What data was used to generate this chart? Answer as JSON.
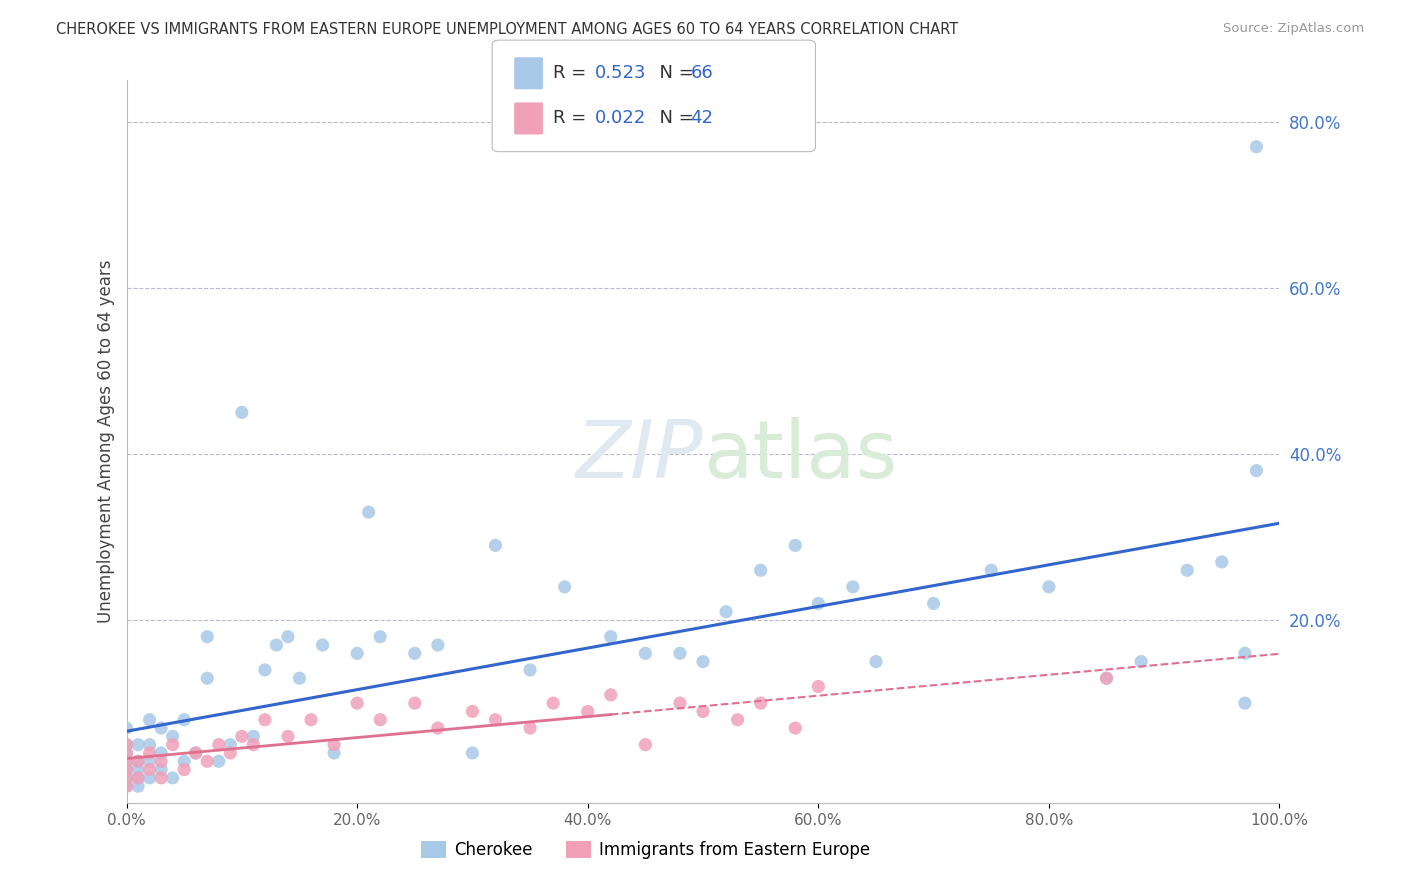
{
  "title": "CHEROKEE VS IMMIGRANTS FROM EASTERN EUROPE UNEMPLOYMENT AMONG AGES 60 TO 64 YEARS CORRELATION CHART",
  "source": "Source: ZipAtlas.com",
  "ylabel": "Unemployment Among Ages 60 to 64 years",
  "xlim": [
    0.0,
    1.0
  ],
  "ylim": [
    -0.02,
    0.85
  ],
  "xticks": [
    0.0,
    0.2,
    0.4,
    0.6,
    0.8,
    1.0
  ],
  "xticklabels": [
    "0.0%",
    "20.0%",
    "40.0%",
    "60.0%",
    "80.0%",
    "100.0%"
  ],
  "yticks_right": [
    0.2,
    0.4,
    0.6,
    0.8
  ],
  "ytick_right_labels": [
    "20.0%",
    "40.0%",
    "60.0%",
    "80.0%"
  ],
  "blue_color": "#A8C8E8",
  "pink_color": "#F0A0B8",
  "line_blue": "#3366CC",
  "line_pink": "#E07090",
  "background_color": "#FFFFFF",
  "cherokee_x": [
    0.0,
    0.0,
    0.0,
    0.0,
    0.0,
    0.0,
    0.0,
    0.01,
    0.01,
    0.01,
    0.01,
    0.01,
    0.02,
    0.02,
    0.02,
    0.02,
    0.03,
    0.03,
    0.03,
    0.04,
    0.04,
    0.05,
    0.05,
    0.06,
    0.07,
    0.07,
    0.08,
    0.09,
    0.1,
    0.11,
    0.12,
    0.13,
    0.14,
    0.15,
    0.17,
    0.18,
    0.2,
    0.21,
    0.22,
    0.25,
    0.27,
    0.3,
    0.32,
    0.35,
    0.38,
    0.42,
    0.45,
    0.48,
    0.5,
    0.52,
    0.55,
    0.58,
    0.6,
    0.63,
    0.65,
    0.7,
    0.75,
    0.8,
    0.85,
    0.88,
    0.92,
    0.95,
    0.97,
    0.97,
    0.98,
    0.98
  ],
  "cherokee_y": [
    0.0,
    0.01,
    0.02,
    0.03,
    0.04,
    0.05,
    0.07,
    0.0,
    0.01,
    0.02,
    0.03,
    0.05,
    0.01,
    0.03,
    0.05,
    0.08,
    0.02,
    0.04,
    0.07,
    0.01,
    0.06,
    0.03,
    0.08,
    0.04,
    0.13,
    0.18,
    0.03,
    0.05,
    0.45,
    0.06,
    0.14,
    0.17,
    0.18,
    0.13,
    0.17,
    0.04,
    0.16,
    0.33,
    0.18,
    0.16,
    0.17,
    0.04,
    0.29,
    0.14,
    0.24,
    0.18,
    0.16,
    0.16,
    0.15,
    0.21,
    0.26,
    0.29,
    0.22,
    0.24,
    0.15,
    0.22,
    0.26,
    0.24,
    0.13,
    0.15,
    0.26,
    0.27,
    0.1,
    0.16,
    0.38,
    0.77
  ],
  "eastern_x": [
    0.0,
    0.0,
    0.0,
    0.0,
    0.0,
    0.0,
    0.01,
    0.01,
    0.02,
    0.02,
    0.03,
    0.03,
    0.04,
    0.05,
    0.06,
    0.07,
    0.08,
    0.09,
    0.1,
    0.11,
    0.12,
    0.14,
    0.16,
    0.18,
    0.2,
    0.22,
    0.25,
    0.27,
    0.3,
    0.32,
    0.35,
    0.37,
    0.4,
    0.42,
    0.45,
    0.48,
    0.5,
    0.53,
    0.55,
    0.58,
    0.6,
    0.85
  ],
  "eastern_y": [
    0.0,
    0.01,
    0.02,
    0.03,
    0.04,
    0.05,
    0.01,
    0.03,
    0.02,
    0.04,
    0.01,
    0.03,
    0.05,
    0.02,
    0.04,
    0.03,
    0.05,
    0.04,
    0.06,
    0.05,
    0.08,
    0.06,
    0.08,
    0.05,
    0.1,
    0.08,
    0.1,
    0.07,
    0.09,
    0.08,
    0.07,
    0.1,
    0.09,
    0.11,
    0.05,
    0.1,
    0.09,
    0.08,
    0.1,
    0.07,
    0.12,
    0.13
  ]
}
